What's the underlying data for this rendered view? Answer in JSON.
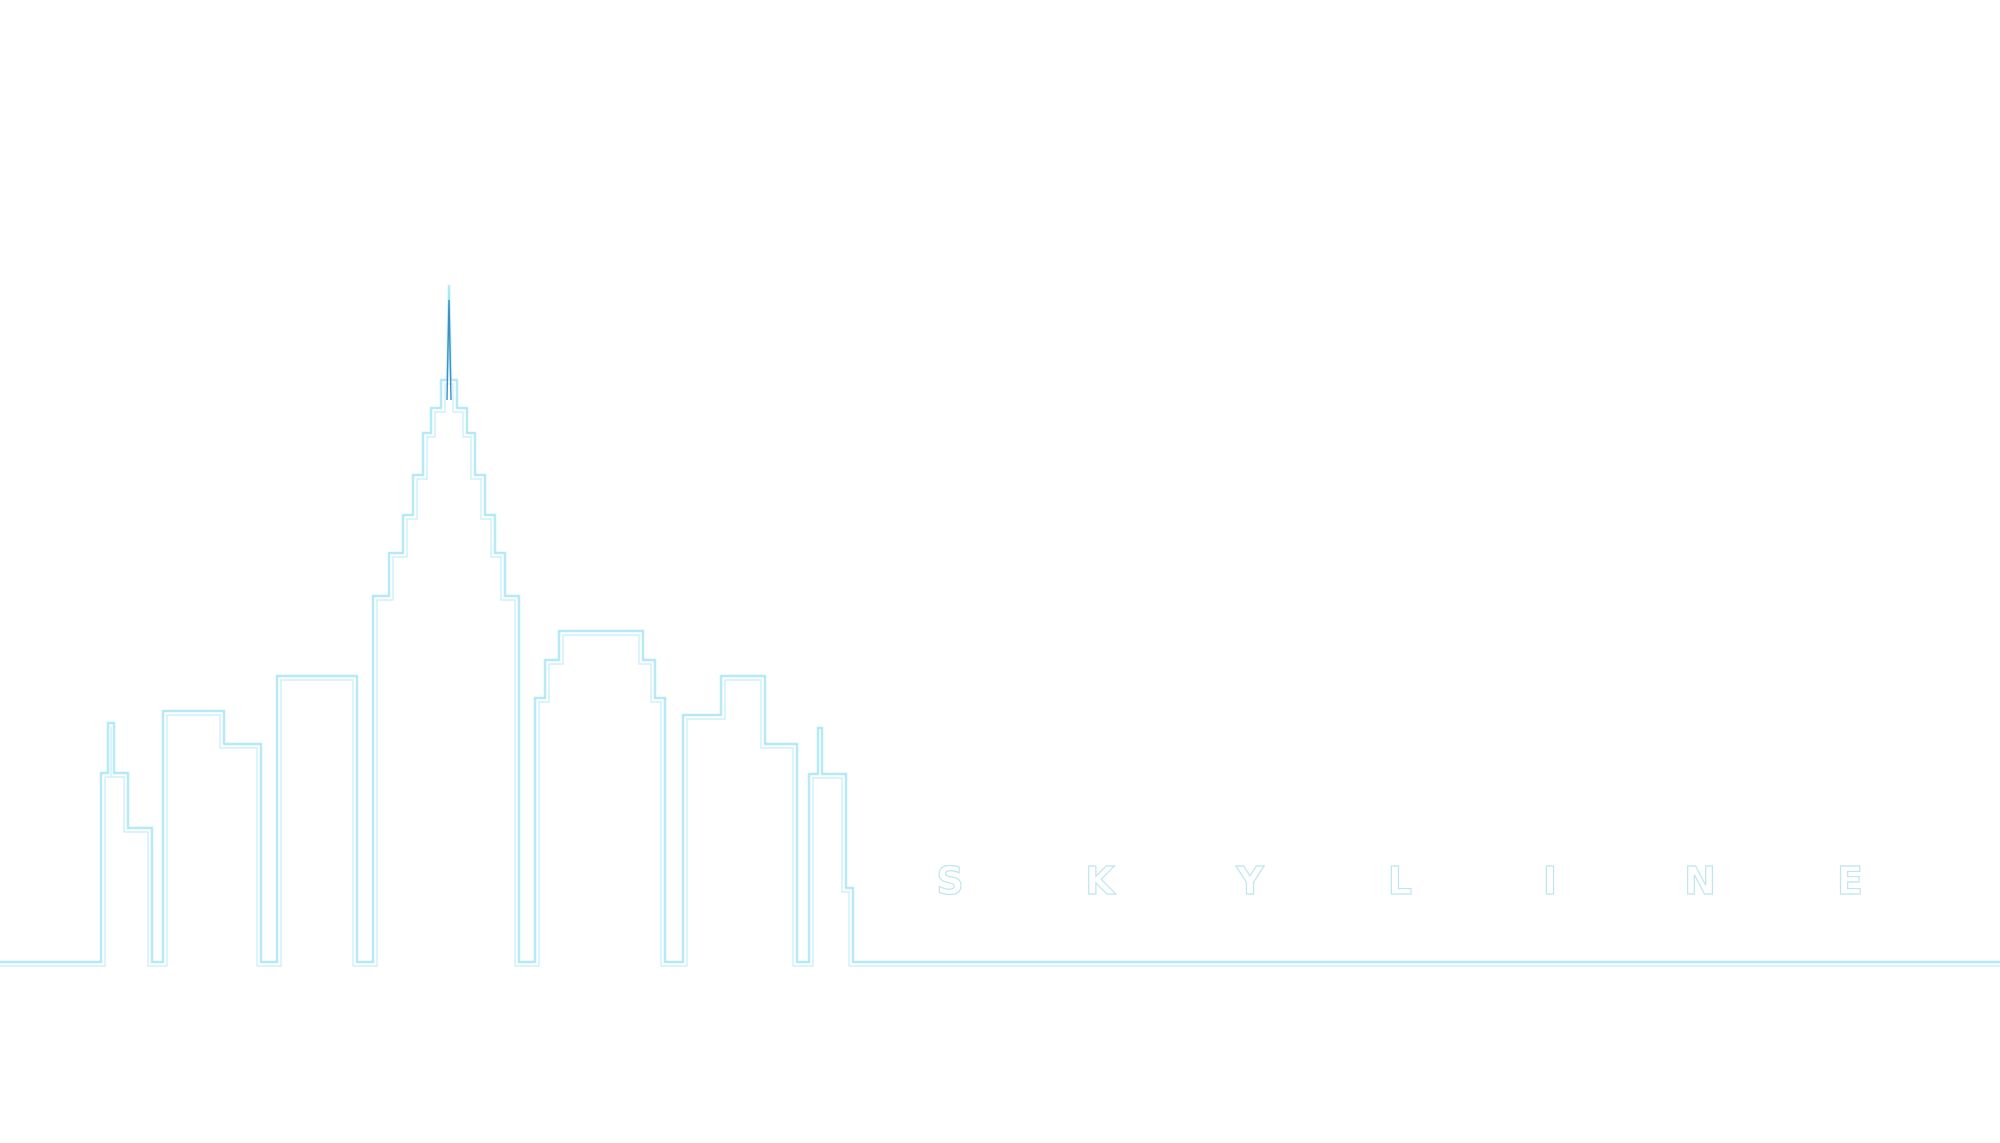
{
  "brand": {
    "letters": [
      "S",
      "K",
      "Y",
      "L",
      "I",
      "N",
      "E"
    ]
  },
  "colors": {
    "background": "#ffffff",
    "outline_outer": "#d9f4fb",
    "outline_inner": "#9fe3f2",
    "spire_accent": "#3b8fc4",
    "wordmark_stroke": "#bfe6ee"
  }
}
